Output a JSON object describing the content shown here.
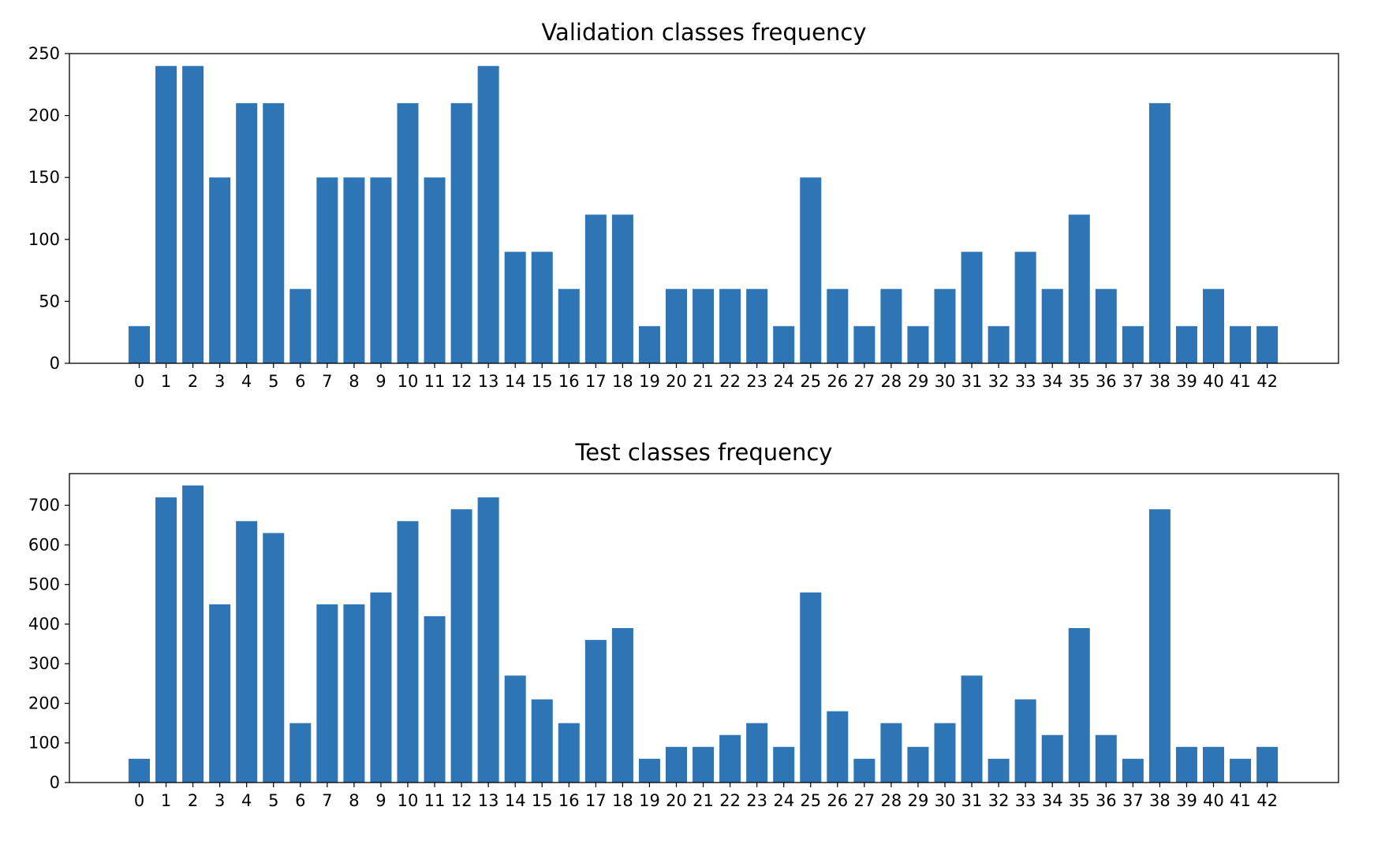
{
  "chart_data": [
    {
      "type": "bar",
      "title": "Validation classes frequency",
      "xlabel": "",
      "ylabel": "",
      "categories": [
        "0",
        "1",
        "2",
        "3",
        "4",
        "5",
        "6",
        "7",
        "8",
        "9",
        "10",
        "11",
        "12",
        "13",
        "14",
        "15",
        "16",
        "17",
        "18",
        "19",
        "20",
        "21",
        "22",
        "23",
        "24",
        "25",
        "26",
        "27",
        "28",
        "29",
        "30",
        "31",
        "32",
        "33",
        "34",
        "35",
        "36",
        "37",
        "38",
        "39",
        "40",
        "41",
        "42"
      ],
      "values": [
        30,
        240,
        240,
        150,
        210,
        210,
        60,
        150,
        150,
        150,
        210,
        150,
        210,
        240,
        90,
        90,
        60,
        120,
        120,
        30,
        60,
        60,
        60,
        60,
        30,
        150,
        60,
        30,
        60,
        30,
        60,
        90,
        30,
        90,
        60,
        120,
        60,
        30,
        210,
        30,
        60,
        30,
        30
      ],
      "ylim": [
        0,
        250
      ],
      "yticks": [
        0,
        50,
        100,
        150,
        200,
        250
      ],
      "grid": false,
      "bar_color": "#2e75b6"
    },
    {
      "type": "bar",
      "title": "Test classes frequency",
      "xlabel": "",
      "ylabel": "",
      "categories": [
        "0",
        "1",
        "2",
        "3",
        "4",
        "5",
        "6",
        "7",
        "8",
        "9",
        "10",
        "11",
        "12",
        "13",
        "14",
        "15",
        "16",
        "17",
        "18",
        "19",
        "20",
        "21",
        "22",
        "23",
        "24",
        "25",
        "26",
        "27",
        "28",
        "29",
        "30",
        "31",
        "32",
        "33",
        "34",
        "35",
        "36",
        "37",
        "38",
        "39",
        "40",
        "41",
        "42"
      ],
      "values": [
        60,
        720,
        750,
        450,
        660,
        630,
        150,
        450,
        450,
        480,
        660,
        420,
        690,
        720,
        270,
        210,
        150,
        360,
        390,
        60,
        90,
        90,
        120,
        150,
        90,
        480,
        180,
        60,
        150,
        90,
        150,
        270,
        60,
        210,
        120,
        390,
        120,
        60,
        690,
        90,
        90,
        60,
        90
      ],
      "ylim": [
        0,
        780
      ],
      "yticks": [
        0,
        100,
        200,
        300,
        400,
        500,
        600,
        700
      ],
      "grid": false,
      "bar_color": "#2e75b6"
    }
  ]
}
